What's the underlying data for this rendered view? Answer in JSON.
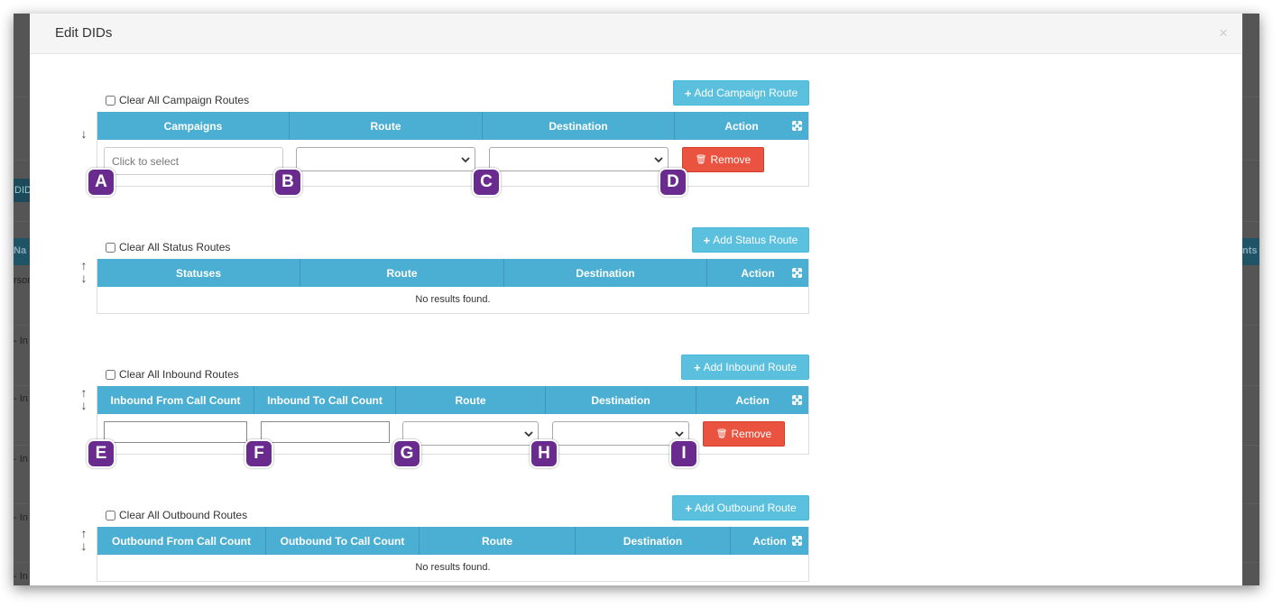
{
  "modal": {
    "title": "Edit DIDs",
    "close": "×"
  },
  "background": {
    "tab": "DIDs",
    "head_left": "Na",
    "head_right": "nts",
    "rows": [
      "rson",
      "- In",
      "- In",
      "- In",
      "- In",
      "- In"
    ]
  },
  "campaign": {
    "clear_label": "Clear All Campaign Routes",
    "add_label": "Add Campaign Route",
    "headers": [
      "Campaigns",
      "Route",
      "Destination",
      "Action"
    ],
    "select_placeholder": "Click to select",
    "remove_label": "Remove"
  },
  "status": {
    "clear_label": "Clear All Status Routes",
    "add_label": "Add Status Route",
    "headers": [
      "Statuses",
      "Route",
      "Destination",
      "Action"
    ],
    "empty": "No results found."
  },
  "inbound": {
    "clear_label": "Clear All Inbound Routes",
    "add_label": "Add Inbound Route",
    "headers": [
      "Inbound From Call Count",
      "Inbound To Call Count",
      "Route",
      "Destination",
      "Action"
    ],
    "remove_label": "Remove"
  },
  "outbound": {
    "clear_label": "Clear All Outbound Routes",
    "add_label": "Add Outbound Route",
    "headers": [
      "Outbound From Call Count",
      "Outbound To Call Count",
      "Route",
      "Destination",
      "Action"
    ],
    "empty": "No results found."
  },
  "badges": [
    "A",
    "B",
    "C",
    "D",
    "E",
    "F",
    "G",
    "H",
    "I"
  ],
  "colors": {
    "header": "#4bafd3",
    "add_button": "#5bc0de",
    "remove_button": "#e9533f",
    "badge": "#6a2b8f"
  }
}
